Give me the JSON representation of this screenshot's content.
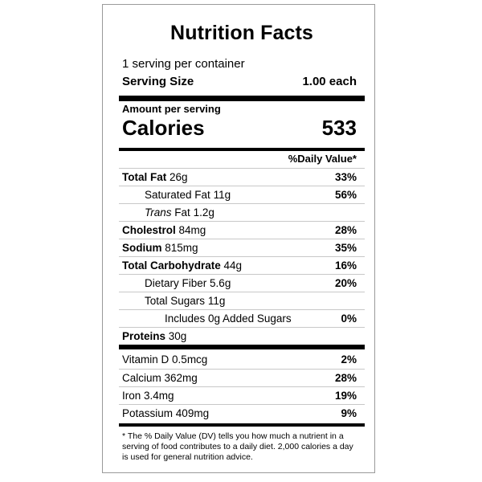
{
  "label": {
    "title": "Nutrition Facts",
    "servings_per_container": "1 serving per container",
    "serving_size_label": "Serving Size",
    "serving_size_value": "1.00 each",
    "amount_per_serving": "Amount per serving",
    "calories_label": "Calories",
    "calories_value": "533",
    "daily_value_header": "%Daily Value*",
    "nutrients": [
      {
        "name": "Total Fat",
        "amount": "26g",
        "dv": "33%"
      },
      {
        "name": "Saturated Fat",
        "amount": "11g",
        "dv": "56%"
      },
      {
        "name_italic": "Trans",
        "name": "Fat",
        "amount": "1.2g",
        "dv": ""
      },
      {
        "name": "Cholestrol",
        "amount": "84mg",
        "dv": "28%"
      },
      {
        "name": "Sodium",
        "amount": "815mg",
        "dv": "35%"
      },
      {
        "name": "Total Carbohydrate",
        "amount": "44g",
        "dv": "16%"
      },
      {
        "name": "Dietary Fiber",
        "amount": "5.6g",
        "dv": "20%"
      },
      {
        "name": "Total Sugars",
        "amount": "11g",
        "dv": ""
      },
      {
        "name": "Includes 0g Added Sugars",
        "amount": "",
        "dv": "0%"
      },
      {
        "name": "Proteins",
        "amount": "30g",
        "dv": ""
      }
    ],
    "vitamins": [
      {
        "name": "Vitamin D",
        "amount": "0.5mcg",
        "dv": "2%"
      },
      {
        "name": "Calcium",
        "amount": "362mg",
        "dv": "28%"
      },
      {
        "name": "Iron",
        "amount": "3.4mg",
        "dv": "19%"
      },
      {
        "name": "Potassium",
        "amount": "409mg",
        "dv": "9%"
      }
    ],
    "footnote": "* The % Daily Value (DV) tells you how much a nutrient in a serving of food contributes to a daily diet. 2,000 calories a day is used for general nutrition advice."
  }
}
